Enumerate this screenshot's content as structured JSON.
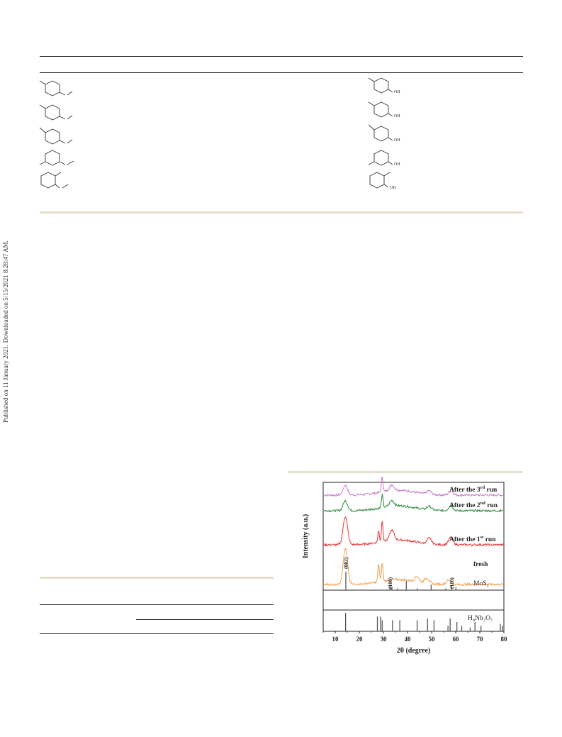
{
  "margin_note": "Published on 11 January 2021. Downloaded on 5/15/2021 8:28:47 AM.",
  "structures": {
    "reactants": [
      "methoxy-toluene (para, 1)",
      "methoxy-toluene (para, 2)",
      "methoxy-toluene (para, 3)",
      "methoxy-toluene (meta)",
      "methoxy-toluene (ortho)"
    ],
    "products": [
      "methylphenol (para, 1)",
      "methylphenol (para, 2)",
      "methylphenol (para, 3)",
      "methylphenol (meta)",
      "methylphenol (ortho)"
    ],
    "product_label": "OH"
  },
  "chart_data": {
    "type": "line",
    "ylabel": "Intensity (a.u.)",
    "xlabel": "2θ (degree)",
    "xlim": [
      5,
      80
    ],
    "xticks": [
      10,
      20,
      30,
      40,
      50,
      60,
      70,
      80
    ],
    "series": [
      {
        "name": "After the 3rd run",
        "label_main": "After the 3",
        "label_sup": "rd",
        "label_tail": " run",
        "color": "#c77dc7",
        "peaks": [
          {
            "x": 14.2,
            "h": 14
          },
          {
            "x": 29.5,
            "h": 22
          },
          {
            "x": 33.5,
            "h": 8
          },
          {
            "x": 49,
            "h": 5
          },
          {
            "x": 58,
            "h": 6
          }
        ]
      },
      {
        "name": "After the 2nd run",
        "label_main": "After the 2",
        "label_sup": "nd",
        "label_tail": " run",
        "color": "#2e8b3e",
        "peaks": [
          {
            "x": 14.2,
            "h": 14
          },
          {
            "x": 29.5,
            "h": 18
          },
          {
            "x": 33.5,
            "h": 8
          },
          {
            "x": 49,
            "h": 5
          },
          {
            "x": 58,
            "h": 7
          }
        ]
      },
      {
        "name": "After the 1st run",
        "label_main": "After the 1",
        "label_sup": "st",
        "label_tail": " run",
        "color": "#e03a3a",
        "peaks": [
          {
            "x": 14.2,
            "h": 40
          },
          {
            "x": 28,
            "h": 16
          },
          {
            "x": 29.5,
            "h": 30
          },
          {
            "x": 33.5,
            "h": 14
          },
          {
            "x": 49,
            "h": 8
          },
          {
            "x": 58,
            "h": 10
          }
        ]
      },
      {
        "name": "fresh",
        "label_main": "fresh",
        "label_sup": "",
        "label_tail": "",
        "color": "#f0a050",
        "peaks": [
          {
            "x": 14.2,
            "h": 50
          },
          {
            "x": 28,
            "h": 26
          },
          {
            "x": 29.5,
            "h": 26
          },
          {
            "x": 44,
            "h": 8
          },
          {
            "x": 48,
            "h": 8
          },
          {
            "x": 57,
            "h": 6
          }
        ]
      }
    ],
    "references": [
      {
        "name": "MoS2",
        "label": "MoS₂",
        "lines": [
          {
            "x": 14.4,
            "h": 1.0
          },
          {
            "x": 32.7,
            "h": 0.25
          },
          {
            "x": 33.5,
            "h": 0.15
          },
          {
            "x": 35.9,
            "h": 0.1
          },
          {
            "x": 39.5,
            "h": 0.5
          },
          {
            "x": 44.1,
            "h": 0.1
          },
          {
            "x": 49.8,
            "h": 0.3
          },
          {
            "x": 55.9,
            "h": 0.1
          },
          {
            "x": 58.3,
            "h": 0.25
          },
          {
            "x": 60.1,
            "h": 0.15
          }
        ]
      },
      {
        "name": "H4Nb2O7",
        "label": "H₄Nb₂O₇",
        "lines": [
          {
            "x": 14.3,
            "h": 1.0
          },
          {
            "x": 27.5,
            "h": 0.8
          },
          {
            "x": 28.8,
            "h": 0.8
          },
          {
            "x": 29.5,
            "h": 0.6
          },
          {
            "x": 33.8,
            "h": 0.6
          },
          {
            "x": 36.8,
            "h": 0.6
          },
          {
            "x": 44,
            "h": 0.6
          },
          {
            "x": 48.3,
            "h": 0.7
          },
          {
            "x": 51,
            "h": 0.6
          },
          {
            "x": 56.8,
            "h": 0.3
          },
          {
            "x": 57.7,
            "h": 0.7
          },
          {
            "x": 60.5,
            "h": 0.5
          },
          {
            "x": 62.5,
            "h": 0.3
          },
          {
            "x": 66,
            "h": 0.2
          },
          {
            "x": 68,
            "h": 0.5
          },
          {
            "x": 70.5,
            "h": 0.3
          },
          {
            "x": 78.5,
            "h": 0.4
          },
          {
            "x": 79.3,
            "h": 0.3
          }
        ]
      }
    ],
    "annotations": [
      "(002)",
      "(100)",
      "(110)"
    ]
  }
}
